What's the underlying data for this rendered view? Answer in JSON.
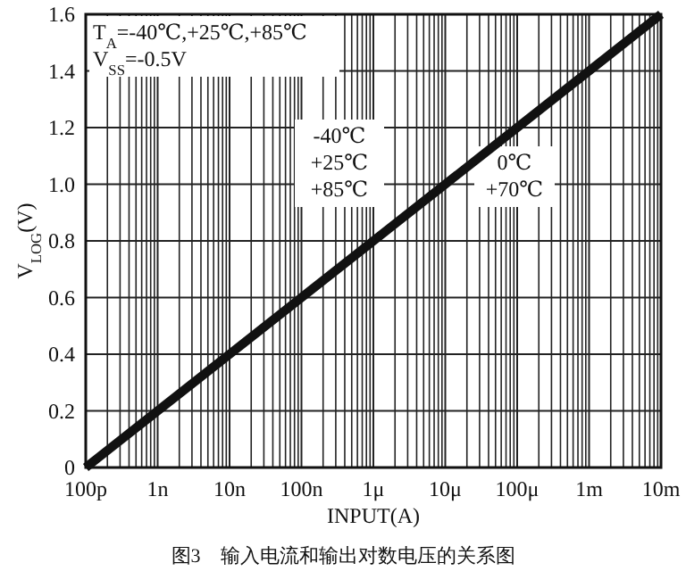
{
  "chart_data": {
    "type": "line",
    "xlabel": "INPUT(A)",
    "ylabel": "V$_{LOG}$(V)",
    "annotations": [
      "T$_{A}$=-40℃,+25℃,+85℃\nV$_{SS}$=-0.5V",
      "-40℃\n+25℃\n+85℃",
      "0℃\n+70℃",
      "图3　输入电流和输出对数电压的关系图"
    ],
    "grid": true,
    "ylim": [
      0,
      1.6
    ],
    "categories": [
      "100p",
      "1n",
      "10n",
      "100n",
      "1μ",
      "10μ",
      "100μ",
      "1m",
      "10m"
    ],
    "yticks": [
      0,
      {
        "value": 0.2,
        "label": "0.2"
      },
      {
        "value": 0.4,
        "label": "0.4"
      },
      {
        "value": 0.6,
        "label": "0.6"
      },
      {
        "value": 0.8,
        "label": "0.8"
      },
      {
        "value": 1.0,
        "label": "1.0"
      },
      {
        "value": 1.2,
        "label": "1.2"
      },
      {
        "value": 1.4,
        "label": "1.4"
      },
      {
        "value": 1.6,
        "label": "1.6"
      }
    ],
    "series": [
      {
        "color": "#111111",
        "values": [
          0,
          0.2,
          0.4,
          0.6,
          0.8,
          1.0,
          1.2,
          1.4,
          1.6
        ]
      }
    ],
    "marker": "none",
    "line_style": "solid"
  }
}
